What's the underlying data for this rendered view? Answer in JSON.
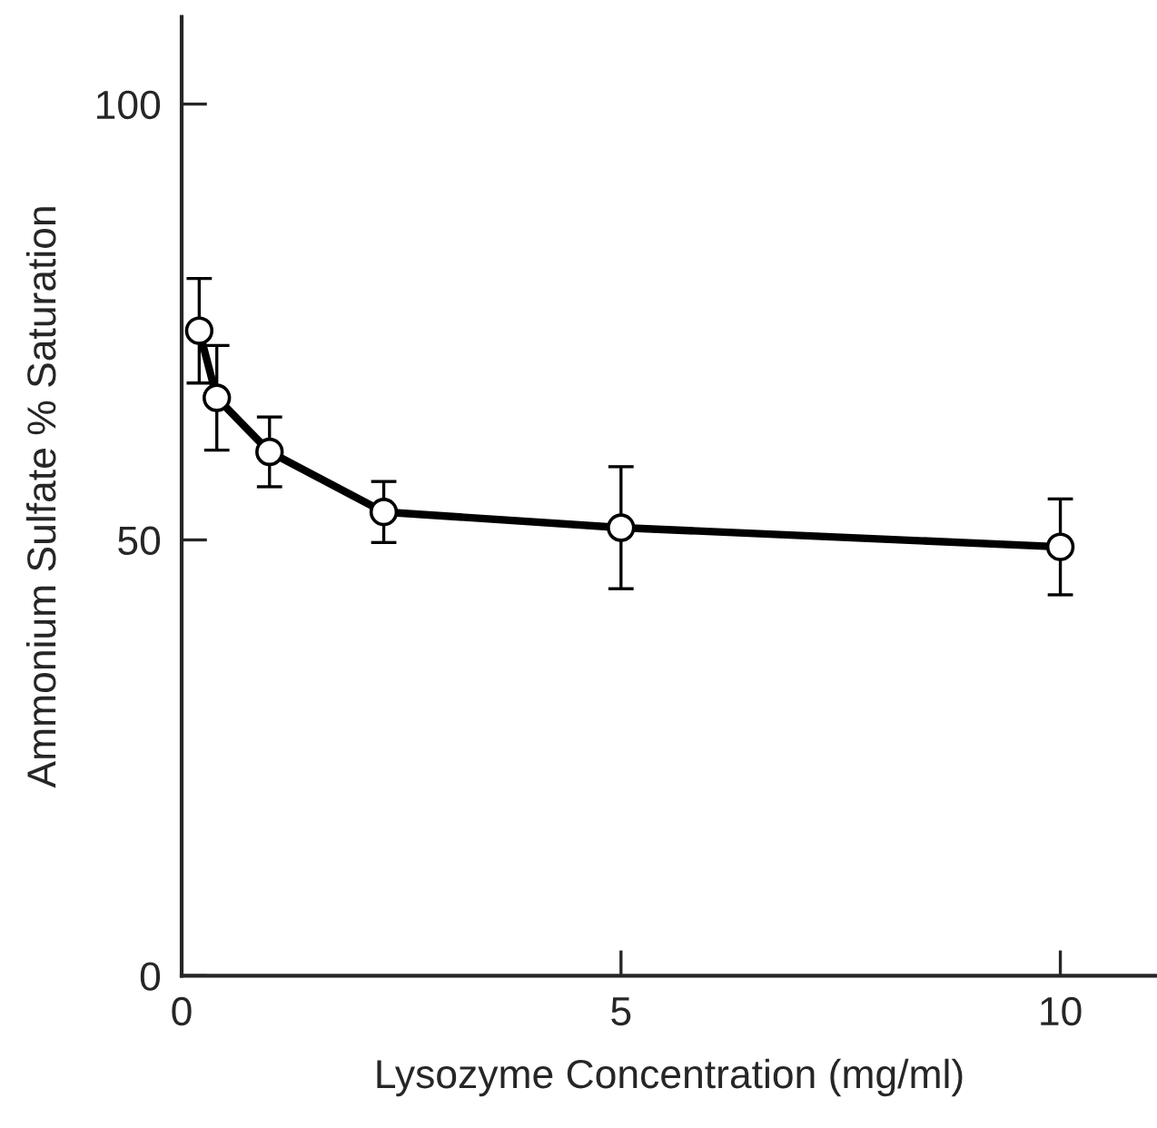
{
  "chart_data": {
    "type": "line",
    "xlabel": "Lysozyme Concentration (mg/ml)",
    "ylabel": "Ammonium Sulfate % Saturation",
    "x": [
      0.2,
      0.4,
      1,
      2.3,
      5,
      10
    ],
    "series": [
      {
        "color": "#000000",
        "values": [
          74,
          66.3,
          60.1,
          53.2,
          51.4,
          49.2
        ],
        "errors": [
          6,
          6,
          4,
          3.5,
          7,
          5.5
        ]
      }
    ],
    "xlim": [
      0,
      11.1
    ],
    "ylim": [
      0,
      110
    ],
    "xticks": [
      0,
      5,
      10
    ],
    "yticks": [
      0,
      50,
      100
    ],
    "marker": "circle",
    "line_style": "solid",
    "grid": false,
    "legend": false
  }
}
